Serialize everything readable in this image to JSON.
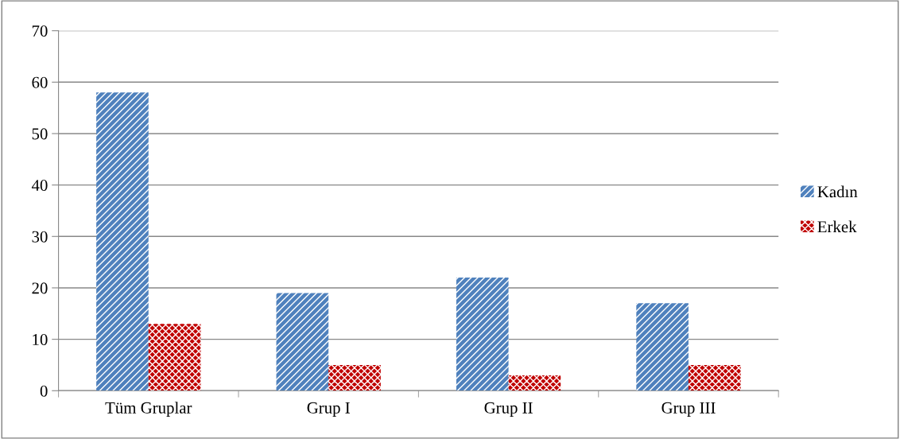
{
  "chart_data": {
    "type": "bar",
    "categories": [
      "Tüm Gruplar",
      "Grup I",
      "Grup II",
      "Grup III"
    ],
    "series": [
      {
        "name": "Kadın",
        "color": "#4f81bd",
        "values": [
          58,
          19,
          22,
          17
        ]
      },
      {
        "name": "Erkek",
        "color": "#c00000",
        "values": [
          13,
          5,
          3,
          5
        ]
      }
    ],
    "ylim": [
      0,
      70
    ],
    "yticks": [
      0,
      10,
      20,
      30,
      40,
      50,
      60,
      70
    ],
    "grid": "y",
    "legend": "right"
  }
}
